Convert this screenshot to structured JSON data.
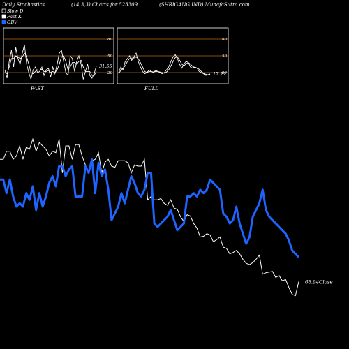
{
  "header": {
    "left": "Daily Stochastics",
    "center": "(14,3,3) Charts for 523309",
    "right": "(SHRIGANG IND) MunafaSutra.com"
  },
  "legend": [
    {
      "label": "Slow  D",
      "color": "#000000",
      "border": "#ffffff"
    },
    {
      "label": "Fast K",
      "color": "#ffffff",
      "border": "#ffffff"
    },
    {
      "label": "OBV",
      "color": "#1e64ff",
      "border": "#1e64ff"
    }
  ],
  "colors": {
    "background": "#000000",
    "obv": "#1e64ff",
    "price": "#ffffff",
    "level_lines": "#b5651d",
    "panel_border": "#ffffff"
  },
  "chart_data": [
    {
      "type": "line",
      "panel": "FAST",
      "label": "FAST",
      "ylim": [
        0,
        100
      ],
      "levels": [
        20,
        50,
        80
      ],
      "tick_labels": [
        "80",
        "50",
        "20"
      ],
      "value_label": "31.55",
      "series": [
        {
          "name": "Fast K",
          "values": [
            25,
            10,
            40,
            60,
            30,
            65,
            45,
            35,
            55,
            70,
            35,
            20,
            8,
            25,
            30,
            20,
            22,
            30,
            15,
            25,
            28,
            12,
            30,
            18,
            35,
            55,
            60,
            40,
            20,
            15,
            50,
            45,
            22,
            40,
            50,
            35,
            8,
            22,
            35,
            15,
            10,
            18,
            31.55
          ]
        },
        {
          "name": "Slow  D",
          "values": [
            20,
            18,
            30,
            45,
            45,
            50,
            48,
            45,
            48,
            55,
            48,
            35,
            20,
            18,
            22,
            25,
            24,
            26,
            22,
            22,
            24,
            20,
            22,
            20,
            25,
            35,
            48,
            50,
            40,
            25,
            30,
            38,
            38,
            35,
            40,
            42,
            30,
            22,
            22,
            22,
            15,
            15,
            22
          ]
        }
      ]
    },
    {
      "type": "line",
      "panel": "FULL",
      "label": "FULL",
      "ylim": [
        0,
        100
      ],
      "levels": [
        20,
        50,
        80
      ],
      "tick_labels": [
        "80",
        "50",
        "20"
      ],
      "value_label": "17.77",
      "series": [
        {
          "name": "Fast K",
          "values": [
            20,
            30,
            25,
            40,
            45,
            50,
            42,
            48,
            55,
            40,
            30,
            22,
            18,
            20,
            25,
            22,
            20,
            24,
            22,
            20,
            18,
            20,
            25,
            30,
            40,
            48,
            52,
            45,
            35,
            28,
            35,
            40,
            38,
            30,
            28,
            30,
            28,
            22,
            20,
            18,
            15,
            16,
            17.77
          ]
        },
        {
          "name": "Slow  D",
          "values": [
            18,
            24,
            28,
            32,
            40,
            45,
            46,
            46,
            48,
            45,
            38,
            30,
            22,
            20,
            22,
            22,
            21,
            22,
            22,
            21,
            20,
            19,
            21,
            25,
            32,
            40,
            47,
            48,
            42,
            35,
            32,
            36,
            38,
            35,
            31,
            29,
            28,
            26,
            22,
            19,
            17,
            16,
            17
          ]
        }
      ]
    },
    {
      "type": "line",
      "panel": "main",
      "close_label": "68.94Close",
      "series": [
        {
          "name": "Close",
          "values": [
            250,
            250,
            262,
            262,
            250,
            255,
            270,
            250,
            268,
            265,
            280,
            262,
            275,
            270,
            265,
            255,
            262,
            260,
            280,
            230,
            270,
            270,
            250,
            272,
            272,
            255,
            242,
            232,
            248,
            250,
            260,
            230,
            246,
            250,
            240,
            238,
            248,
            248,
            248,
            245,
            230,
            242,
            240,
            240,
            250,
            190,
            195,
            190,
            190,
            192,
            185,
            182,
            190,
            178,
            176,
            165,
            158,
            168,
            166,
            155,
            148,
            135,
            136,
            140,
            138,
            128,
            131,
            135,
            120,
            118,
            110,
            112,
            115,
            110,
            102,
            96,
            94,
            97,
            102,
            108,
            80,
            82,
            83,
            84,
            75,
            78,
            70,
            72,
            60,
            50,
            48,
            68.94
          ]
        },
        {
          "name": "OBV",
          "values": [
            220,
            220,
            200,
            220,
            195,
            180,
            185,
            180,
            200,
            190,
            210,
            175,
            200,
            180,
            195,
            215,
            225,
            210,
            240,
            240,
            225,
            235,
            240,
            195,
            195,
            195,
            240,
            230,
            250,
            200,
            245,
            225,
            235,
            205,
            160,
            170,
            180,
            200,
            185,
            205,
            225,
            215,
            200,
            195,
            205,
            230,
            230,
            155,
            150,
            155,
            160,
            165,
            175,
            160,
            145,
            150,
            155,
            195,
            195,
            200,
            195,
            205,
            200,
            205,
            220,
            215,
            210,
            205,
            170,
            165,
            155,
            160,
            180,
            155,
            140,
            125,
            135,
            165,
            175,
            185,
            205,
            175,
            165,
            160,
            155,
            150,
            145,
            140,
            130,
            115,
            110,
            105
          ]
        }
      ]
    }
  ]
}
